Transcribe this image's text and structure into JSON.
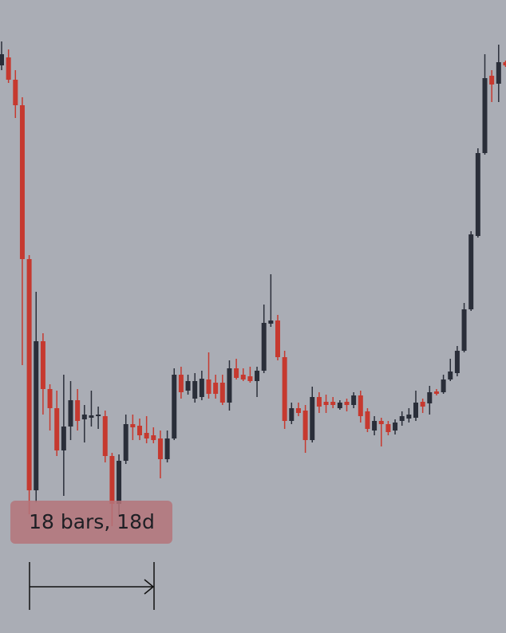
{
  "chart_data": {
    "type": "candlestick",
    "annotation": "18 bars, 18d",
    "ylim": [
      0,
      794
    ],
    "up_color": "#2a2e39",
    "down_color": "#c6392f",
    "open": [
      712,
      722,
      694,
      662,
      469,
      179,
      366,
      306,
      282,
      229,
      259,
      292,
      268,
      270,
      272,
      272,
      222,
      162,
      216,
      262,
      260,
      251,
      248,
      244,
      218,
      244,
      324,
      304,
      294,
      296,
      318,
      314,
      314,
      289,
      332,
      324,
      322,
      316,
      329,
      388,
      392,
      346,
      266,
      282,
      279,
      242,
      296,
      290,
      290,
      282,
      290,
      286,
      298,
      278,
      254,
      266,
      262,
      254,
      266,
      269,
      270,
      290,
      288,
      303,
      302,
      318,
      326,
      354,
      406,
      498,
      602,
      699,
      689,
      716
    ],
    "high": [
      742,
      732,
      706,
      672,
      474,
      428,
      376,
      312,
      304,
      324,
      316,
      306,
      286,
      304,
      284,
      279,
      226,
      224,
      274,
      274,
      269,
      272,
      258,
      254,
      254,
      332,
      334,
      324,
      326,
      329,
      352,
      324,
      324,
      342,
      344,
      332,
      334,
      334,
      412,
      450,
      399,
      354,
      289,
      289,
      286,
      309,
      302,
      299,
      296,
      292,
      294,
      302,
      304,
      282,
      272,
      270,
      266,
      268,
      278,
      282,
      304,
      294,
      310,
      306,
      324,
      344,
      360,
      414,
      504,
      608,
      726,
      706,
      738,
      718
    ],
    "low": [
      706,
      690,
      646,
      336,
      149,
      164,
      274,
      254,
      222,
      172,
      242,
      254,
      239,
      259,
      256,
      214,
      134,
      146,
      212,
      242,
      242,
      238,
      238,
      194,
      214,
      242,
      294,
      299,
      289,
      292,
      294,
      294,
      286,
      279,
      318,
      316,
      314,
      296,
      326,
      384,
      342,
      256,
      262,
      272,
      226,
      239,
      276,
      276,
      282,
      280,
      278,
      282,
      264,
      252,
      248,
      234,
      248,
      249,
      260,
      264,
      266,
      276,
      274,
      298,
      300,
      316,
      322,
      352,
      404,
      496,
      600,
      666,
      666,
      710
    ],
    "close": [
      726,
      694,
      662,
      469,
      179,
      366,
      306,
      282,
      229,
      259,
      292,
      266,
      274,
      273,
      274,
      222,
      162,
      216,
      262,
      258,
      248,
      244,
      242,
      218,
      244,
      324,
      302,
      316,
      316,
      319,
      300,
      300,
      289,
      332,
      320,
      318,
      316,
      329,
      389,
      392,
      346,
      266,
      282,
      276,
      242,
      296,
      284,
      286,
      286,
      289,
      286,
      298,
      272,
      256,
      266,
      262,
      252,
      264,
      272,
      274,
      289,
      284,
      302,
      300,
      318,
      328,
      354,
      406,
      500,
      602,
      696,
      688,
      716,
      712
    ]
  }
}
